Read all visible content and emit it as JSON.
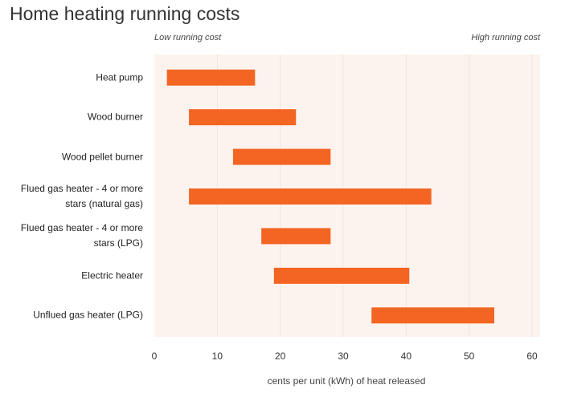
{
  "chart_data": {
    "type": "range_bar",
    "title": "Home heating running costs",
    "annotations": [
      "Low running cost",
      "High running cost"
    ],
    "x_label": "cents per unit (kWh) of heat released",
    "categories": [
      "Heat pump",
      "Wood burner",
      "Wood pellet burner",
      "Flued gas heater - 4 or more stars (natural gas)",
      "Flued gas heater - 4 or more stars (LPG)",
      "Electric heater",
      "Unflued gas heater (LPG)"
    ],
    "low": [
      2,
      5.5,
      12.5,
      5.5,
      17,
      19,
      34.5
    ],
    "high": [
      16,
      22.5,
      28,
      44,
      28,
      40.5,
      54
    ],
    "color": "#f26522",
    "xlim": [
      0,
      60
    ],
    "xticks": [
      0,
      10,
      20,
      30,
      40,
      50,
      60
    ],
    "grid": true
  }
}
